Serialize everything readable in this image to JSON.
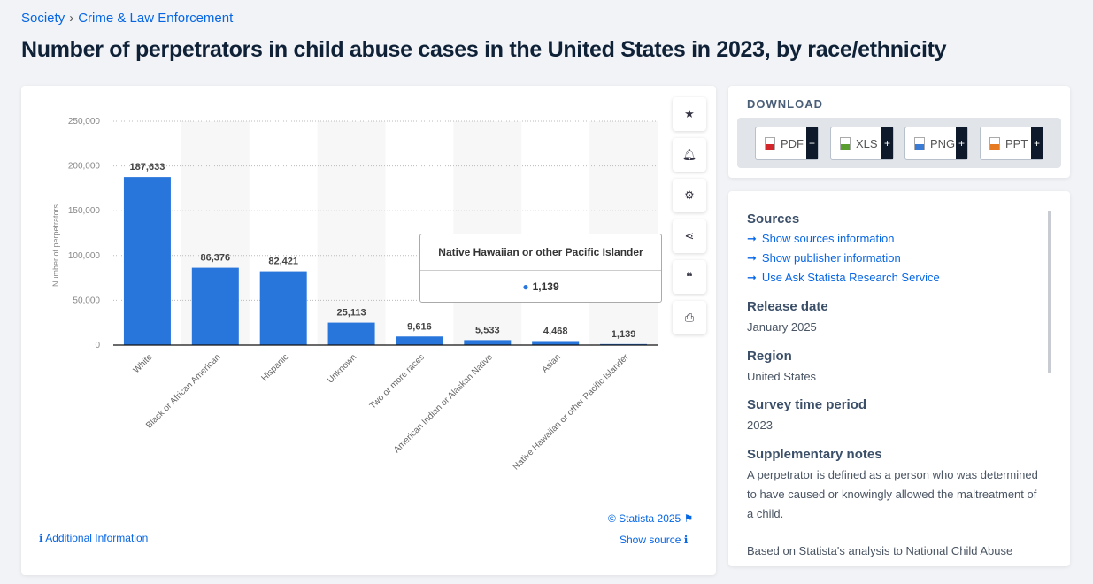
{
  "breadcrumb": {
    "items": [
      "Society",
      "Crime & Law Enforcement"
    ]
  },
  "page_title": "Number of perpetrators in child abuse cases in the United States in 2023, by race/ethnicity",
  "chart_data": {
    "type": "bar",
    "categories": [
      "White",
      "Black or African American",
      "Hispanic",
      "Unknown",
      "Two or more races",
      "American Indian or Alaskan Native",
      "Asian",
      "Native Hawaiian or other Pacific Islander"
    ],
    "values": [
      187633,
      86376,
      82421,
      25113,
      9616,
      5533,
      4468,
      1139
    ],
    "data_labels": [
      "187,633",
      "86,376",
      "82,421",
      "25,113",
      "9,616",
      "5,533",
      "4,468",
      "1,139"
    ],
    "ylabel": "Number of perpetrators",
    "ylim": [
      0,
      250000
    ],
    "yticks": [
      "0",
      "50,000",
      "100,000",
      "150,000",
      "200,000",
      "250,000"
    ],
    "grid": true,
    "bar_color": "#2875dc",
    "tooltip": {
      "title": "Native Hawaiian or other Pacific Islander",
      "value": "1,139"
    }
  },
  "chart_footer": {
    "copyright": "© Statista 2025",
    "additional_info": "Additional Information",
    "show_source": "Show source"
  },
  "side_buttons": [
    "star-icon",
    "bell-icon",
    "gear-icon",
    "share-icon",
    "quote-icon",
    "print-icon"
  ],
  "download": {
    "title": "DOWNLOAD",
    "buttons": [
      {
        "label": "PDF",
        "color": "#d3262a"
      },
      {
        "label": "XLS",
        "color": "#5a9e2f"
      },
      {
        "label": "PNG",
        "color": "#3a7bd5"
      },
      {
        "label": "PPT",
        "color": "#e67a22"
      }
    ],
    "plus": "+"
  },
  "info": {
    "sources_title": "Sources",
    "links": [
      "Show sources information",
      "Show publisher information",
      "Use Ask Statista Research Service"
    ],
    "release_title": "Release date",
    "release": "January 2025",
    "region_title": "Region",
    "region": "United States",
    "period_title": "Survey time period",
    "period": "2023",
    "notes_title": "Supplementary notes",
    "notes": "A perpetrator is defined as a person who was determined to have caused or knowingly allowed the maltreatment of a child.",
    "notes2": "Based on Statista's analysis to National Child Abuse"
  }
}
